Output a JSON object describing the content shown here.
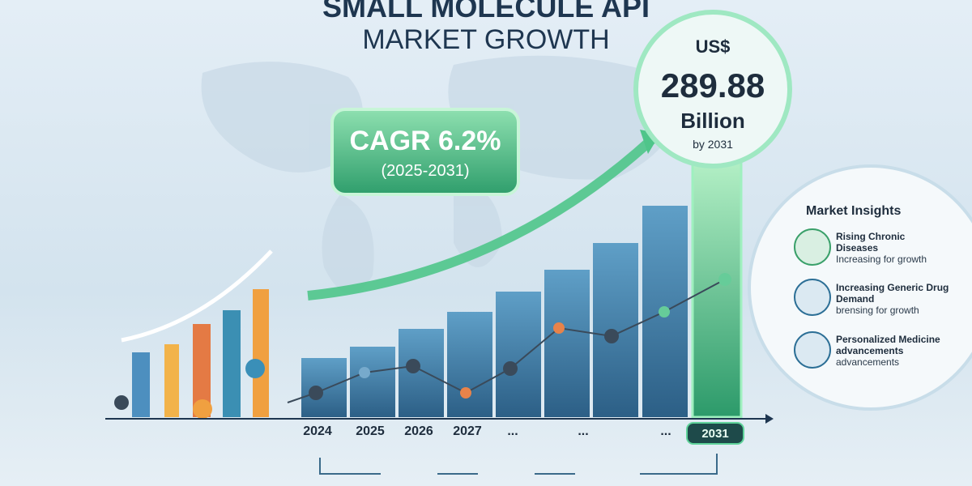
{
  "header": {
    "title": "SMALL MOLECULE API",
    "subtitle": "MARKET GROWTH"
  },
  "callout": {
    "currency": "US$",
    "amount": "289.88",
    "unit": "Billion",
    "year": "by 2031"
  },
  "cagr": {
    "label": "CAGR 6.2%",
    "period": "(2025-2031)"
  },
  "timeline": {
    "labels": [
      "2024",
      "2025",
      "2026",
      "2027",
      "...",
      "...",
      "...",
      "2031"
    ]
  },
  "insights": {
    "title": "Market Insights",
    "items": [
      {
        "title": "Rising Chronic Diseases",
        "desc": "Increasing for growth"
      },
      {
        "title": "Increasing Generic Drug Demand",
        "desc": "brensing for growth"
      },
      {
        "title": "Personalized Medicine advancements",
        "desc": "advancements"
      }
    ]
  }
}
